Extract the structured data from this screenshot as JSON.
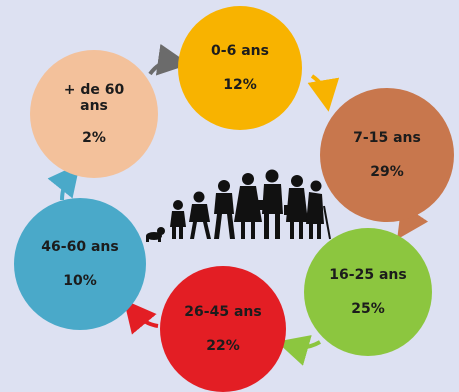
{
  "groups": [
    {
      "label": "0-6 ans",
      "pct": "12%",
      "color": "#f8b300"
    },
    {
      "label": "7-15 ans",
      "pct": "29%",
      "color": "#c8774d"
    },
    {
      "label": "16-25 ans",
      "pct": "25%",
      "color": "#8cc63f"
    },
    {
      "label": "26-45 ans",
      "pct": "22%",
      "color": "#e31e24"
    },
    {
      "label": "46-60 ans",
      "pct": "10%",
      "color": "#4aa9c9"
    },
    {
      "label": "+ de 60 ans",
      "pct": "2%",
      "color": "#f3c19b"
    }
  ],
  "arrow_colors": [
    "#6b6b6b",
    "#f8b300",
    "#c8774d",
    "#8cc63f",
    "#e31e24",
    "#4aa9c9"
  ]
}
